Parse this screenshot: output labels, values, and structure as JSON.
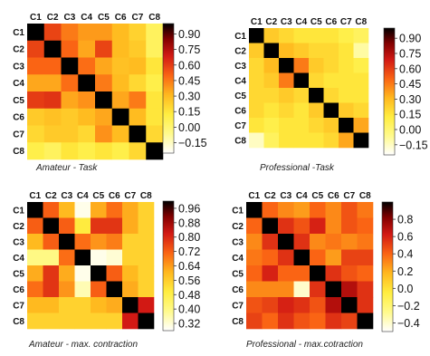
{
  "chart_data": [
    {
      "type": "heatmap",
      "caption": "Amateur - Task",
      "labels": [
        "C1",
        "C2",
        "C3",
        "C4",
        "C5",
        "C6",
        "C7",
        "C8"
      ],
      "colorbar_ticks": [
        "0.90",
        "0.75",
        "0.60",
        "0.45",
        "0.30",
        "0.15",
        "0.00",
        "−0.15"
      ],
      "colorbar_values": [
        0.9,
        0.75,
        0.6,
        0.45,
        0.3,
        0.15,
        0.0,
        -0.15
      ],
      "vmin": -0.25,
      "vmax": 1.0,
      "values": [
        [
          1.0,
          0.58,
          0.45,
          0.38,
          0.38,
          0.3,
          0.22,
          0.05
        ],
        [
          0.58,
          1.0,
          0.5,
          0.35,
          0.58,
          0.3,
          0.25,
          0.05
        ],
        [
          0.5,
          0.5,
          1.0,
          0.48,
          0.35,
          0.28,
          0.3,
          0.15
        ],
        [
          0.35,
          0.35,
          0.48,
          1.0,
          0.45,
          0.3,
          0.2,
          0.1
        ],
        [
          0.6,
          0.62,
          0.35,
          0.4,
          1.0,
          0.35,
          0.45,
          0.15
        ],
        [
          0.25,
          0.28,
          0.25,
          0.3,
          0.35,
          1.0,
          0.3,
          0.15
        ],
        [
          0.2,
          0.25,
          0.25,
          0.2,
          0.4,
          0.3,
          1.0,
          0.2
        ],
        [
          0.1,
          0.05,
          0.15,
          0.1,
          0.15,
          0.1,
          0.2,
          1.0
        ]
      ]
    },
    {
      "type": "heatmap",
      "caption": "Professional -Task",
      "labels": [
        "C1",
        "C2",
        "C3",
        "C4",
        "C5",
        "C6",
        "C7",
        "C8"
      ],
      "colorbar_ticks": [
        "0.90",
        "0.75",
        "0.60",
        "0.45",
        "0.30",
        "0.15",
        "0.00",
        "−0.15"
      ],
      "colorbar_values": [
        0.9,
        0.75,
        0.6,
        0.45,
        0.3,
        0.15,
        0.0,
        -0.15
      ],
      "vmin": -0.25,
      "vmax": 1.0,
      "values": [
        [
          1.0,
          0.25,
          0.2,
          0.15,
          0.15,
          0.15,
          0.1,
          0.05
        ],
        [
          0.25,
          1.0,
          0.3,
          0.25,
          0.2,
          0.2,
          0.15,
          -0.1
        ],
        [
          0.2,
          0.3,
          1.0,
          0.45,
          0.25,
          0.2,
          0.15,
          0.1
        ],
        [
          0.2,
          0.25,
          0.45,
          1.0,
          0.2,
          0.15,
          0.15,
          0.15
        ],
        [
          0.2,
          0.2,
          0.25,
          0.2,
          1.0,
          0.2,
          0.15,
          0.15
        ],
        [
          0.2,
          0.15,
          0.2,
          0.15,
          0.25,
          1.0,
          0.25,
          0.2
        ],
        [
          0.15,
          0.1,
          0.15,
          0.15,
          0.2,
          0.25,
          1.0,
          0.35
        ],
        [
          -0.15,
          0.05,
          0.15,
          0.15,
          0.15,
          0.2,
          0.35,
          1.0
        ]
      ]
    },
    {
      "type": "heatmap",
      "caption": "Amateur - max. contraction",
      "labels": [
        "C1",
        "C2",
        "C3",
        "C4",
        "C5",
        "C6",
        "C7",
        "C8"
      ],
      "colorbar_ticks": [
        "0.96",
        "0.88",
        "0.80",
        "0.72",
        "0.64",
        "0.56",
        "0.48",
        "0.40",
        "0.32"
      ],
      "colorbar_values": [
        0.96,
        0.88,
        0.8,
        0.72,
        0.64,
        0.56,
        0.48,
        0.4,
        0.32
      ],
      "vmin": 0.28,
      "vmax": 1.0,
      "values": [
        [
          1.0,
          0.72,
          0.6,
          0.3,
          0.62,
          0.7,
          0.62,
          0.55
        ],
        [
          0.72,
          1.0,
          0.72,
          0.5,
          0.78,
          0.78,
          0.62,
          0.55
        ],
        [
          0.6,
          0.72,
          1.0,
          0.7,
          0.65,
          0.68,
          0.55,
          0.55
        ],
        [
          0.4,
          0.4,
          0.7,
          1.0,
          0.3,
          0.32,
          0.55,
          0.55
        ],
        [
          0.62,
          0.78,
          0.62,
          0.3,
          1.0,
          0.72,
          0.6,
          0.55
        ],
        [
          0.7,
          0.78,
          0.65,
          0.35,
          0.72,
          1.0,
          0.62,
          0.55
        ],
        [
          0.6,
          0.6,
          0.55,
          0.55,
          0.6,
          0.62,
          1.0,
          0.82
        ],
        [
          0.55,
          0.55,
          0.55,
          0.55,
          0.55,
          0.55,
          0.82,
          1.0
        ]
      ]
    },
    {
      "type": "heatmap",
      "caption": "Professional - max.cotraction",
      "labels": [
        "C1",
        "C2",
        "C3",
        "C4",
        "C5",
        "C6",
        "C7",
        "C8"
      ],
      "colorbar_ticks": [
        "0.8",
        "0.6",
        "0.4",
        "0.2",
        "0.0",
        "−0.2",
        "−0.4"
      ],
      "colorbar_values": [
        0.8,
        0.6,
        0.4,
        0.2,
        0.0,
        -0.2,
        -0.4
      ],
      "vmin": -0.5,
      "vmax": 1.0,
      "values": [
        [
          1.0,
          0.4,
          0.3,
          0.25,
          0.4,
          0.3,
          0.45,
          0.35
        ],
        [
          0.4,
          1.0,
          0.55,
          0.45,
          0.6,
          0.3,
          0.45,
          0.4
        ],
        [
          0.3,
          0.55,
          1.0,
          0.55,
          0.3,
          0.35,
          0.3,
          0.35
        ],
        [
          0.35,
          0.4,
          0.55,
          1.0,
          0.4,
          0.25,
          0.5,
          0.5
        ],
        [
          0.4,
          0.6,
          0.4,
          0.4,
          1.0,
          0.55,
          0.45,
          0.4
        ],
        [
          0.3,
          0.3,
          0.3,
          -0.4,
          0.55,
          1.0,
          0.7,
          0.55
        ],
        [
          0.45,
          0.5,
          0.6,
          0.55,
          0.45,
          0.7,
          1.0,
          0.55
        ],
        [
          0.5,
          0.4,
          0.55,
          0.45,
          0.4,
          0.55,
          0.5,
          1.0
        ]
      ]
    }
  ]
}
